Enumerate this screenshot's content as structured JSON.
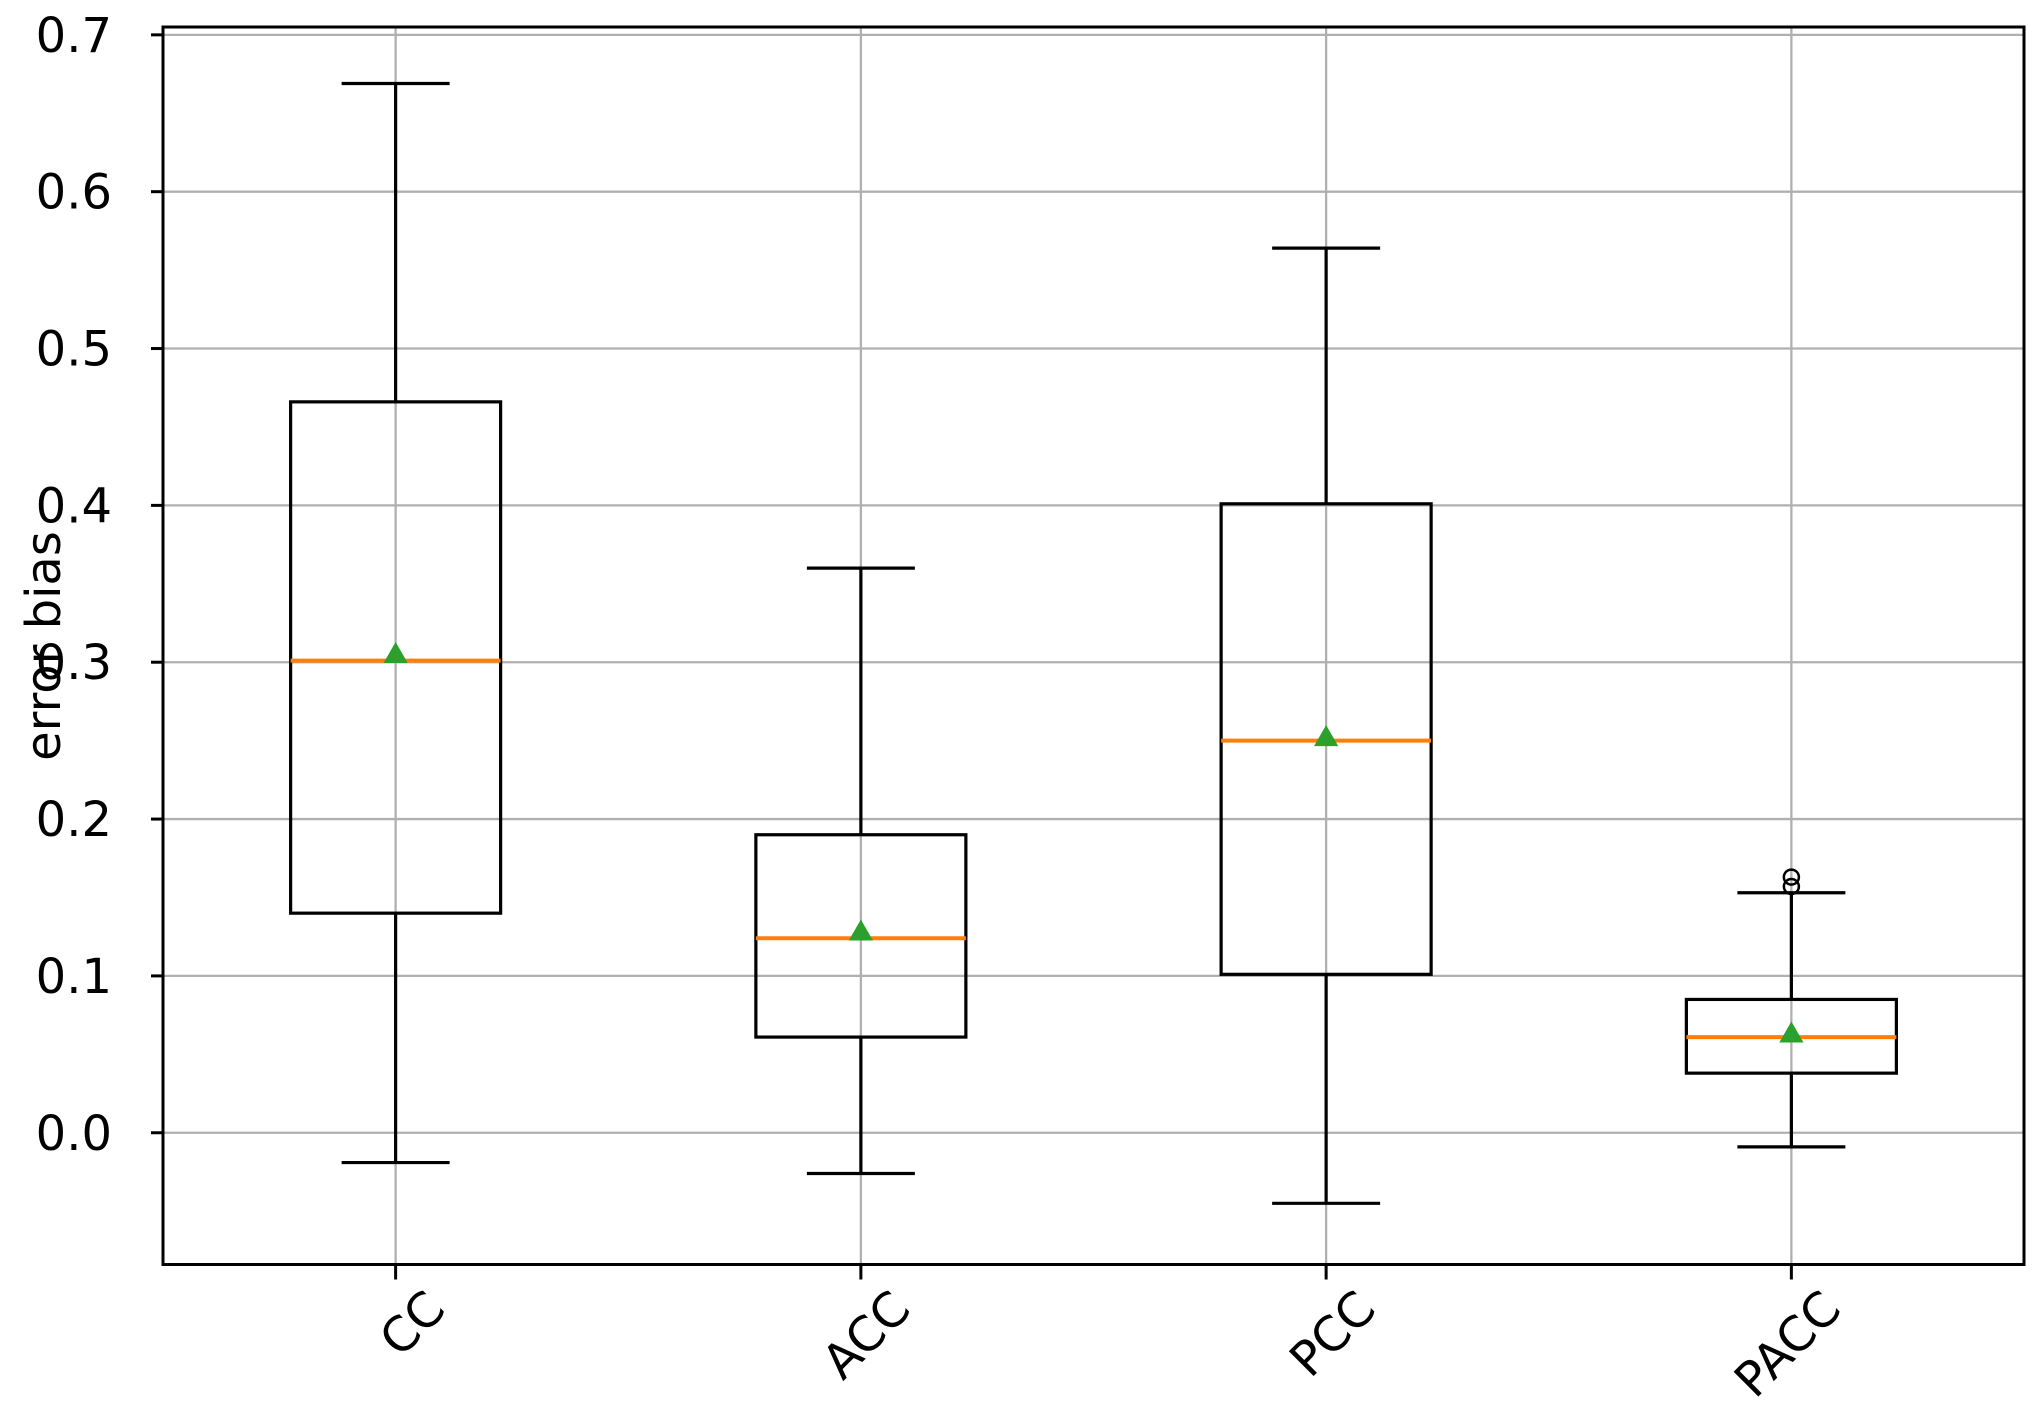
{
  "chart_data": {
    "type": "boxplot",
    "title": "",
    "xlabel": "",
    "ylabel": "error bias",
    "categories": [
      "CC",
      "ACC",
      "PCC",
      "PACC"
    ],
    "y_ticks": [
      0.0,
      0.1,
      0.2,
      0.3,
      0.4,
      0.5,
      0.6,
      0.7
    ],
    "y_tick_labels": [
      "0.0",
      "0.1",
      "0.2",
      "0.3",
      "0.4",
      "0.5",
      "0.6",
      "0.7"
    ],
    "ylim": [
      -0.084,
      0.705
    ],
    "grid": true,
    "legend": "none",
    "x_tick_rotation_deg": 45,
    "series": [
      {
        "name": "CC",
        "whislo": -0.019,
        "q1": 0.14,
        "med": 0.301,
        "mean": 0.304,
        "q3": 0.466,
        "whishi": 0.669,
        "fliers": []
      },
      {
        "name": "ACC",
        "whislo": -0.026,
        "q1": 0.061,
        "med": 0.124,
        "mean": 0.127,
        "q3": 0.19,
        "whishi": 0.36,
        "fliers": []
      },
      {
        "name": "PCC",
        "whislo": -0.045,
        "q1": 0.101,
        "med": 0.25,
        "mean": 0.251,
        "q3": 0.401,
        "whishi": 0.564,
        "fliers": []
      },
      {
        "name": "PACC",
        "whislo": -0.009,
        "q1": 0.038,
        "med": 0.061,
        "mean": 0.062,
        "q3": 0.085,
        "whishi": 0.153,
        "fliers": [
          0.157,
          0.163
        ]
      }
    ],
    "colors": {
      "median": "#ff7f0e",
      "mean_marker": "#2ca02c",
      "box_line": "#000000",
      "grid_line": "#b0b0b0",
      "spine": "#000000",
      "background": "#ffffff"
    }
  }
}
